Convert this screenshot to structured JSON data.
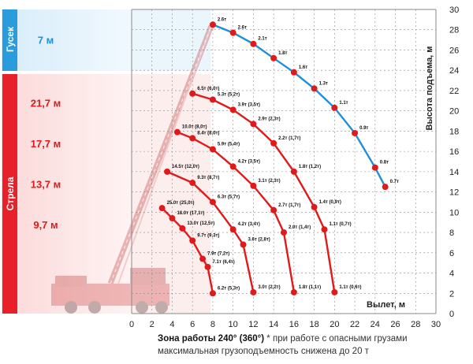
{
  "chart_data": {
    "type": "line",
    "title": "",
    "xlabel": "Вылет, м",
    "ylabel": "Высота подъема, м",
    "xlim": [
      0,
      30
    ],
    "ylim": [
      0,
      30
    ],
    "x_ticks": [
      0,
      2,
      4,
      6,
      8,
      10,
      12,
      14,
      16,
      18,
      20,
      22,
      24,
      26,
      28,
      30
    ],
    "y_ticks": [
      0,
      2,
      4,
      6,
      8,
      10,
      12,
      14,
      16,
      18,
      20,
      22,
      24,
      26,
      28,
      30
    ],
    "grid": true,
    "colors": {
      "jib": "#1e8fd8",
      "boom": "#e01a1a",
      "point": "#e01a1a",
      "jib_band": "#2a9bdc",
      "boom_band": "#e8202a"
    },
    "side_labels": {
      "jib": "Гусек",
      "boom": "Стрела"
    },
    "boom_lengths": [
      {
        "label": "7 м",
        "y": 27
      },
      {
        "label": "21,7 м",
        "y": 20.8
      },
      {
        "label": "17,7 м",
        "y": 16.8
      },
      {
        "label": "13,7 м",
        "y": 12.8
      },
      {
        "label": "9,7 м",
        "y": 8.8
      }
    ],
    "series": [
      {
        "name": "7 м",
        "kind": "jib",
        "points": [
          {
            "x": 8,
            "y": 28.5,
            "label": "2.6т"
          },
          {
            "x": 10,
            "y": 27.7,
            "label": "2.6т"
          },
          {
            "x": 12,
            "y": 26.6,
            "label": "2.1т"
          },
          {
            "x": 14,
            "y": 25.2,
            "label": "1.8т"
          },
          {
            "x": 16,
            "y": 23.8,
            "label": "1.6т"
          },
          {
            "x": 18,
            "y": 22.2,
            "label": "1.3т"
          },
          {
            "x": 20,
            "y": 20.3,
            "label": "1.1т"
          },
          {
            "x": 22,
            "y": 17.8,
            "label": "0.9т"
          },
          {
            "x": 24,
            "y": 14.4,
            "label": "0.8т"
          },
          {
            "x": 25,
            "y": 12.5,
            "label": "0.7т"
          }
        ]
      },
      {
        "name": "21,7 м",
        "kind": "boom",
        "points": [
          {
            "x": 6,
            "y": 21.7,
            "label": "6.5т (6,0т)"
          },
          {
            "x": 8,
            "y": 21.1,
            "label": "5.3т (5,2т)"
          },
          {
            "x": 10,
            "y": 20.1,
            "label": "3.9т (3,5т)"
          },
          {
            "x": 12,
            "y": 18.7,
            "label": "2.9т (2,3т)"
          },
          {
            "x": 14,
            "y": 16.8,
            "label": "2.2т (1,7т)"
          },
          {
            "x": 16,
            "y": 14.0,
            "label": "1.8т (1,2т)"
          },
          {
            "x": 18,
            "y": 10.5,
            "label": "1.4т (0,9т)"
          },
          {
            "x": 19,
            "y": 8.3,
            "label": "1.1т (0,7т)"
          },
          {
            "x": 20,
            "y": 2.1,
            "label": "1.1т (0,6т)"
          }
        ]
      },
      {
        "name": "17,7 м",
        "kind": "boom",
        "points": [
          {
            "x": 4.5,
            "y": 17.9,
            "label": "10.0т (8,0т)"
          },
          {
            "x": 6,
            "y": 17.3,
            "label": "8.4т (8,0т)"
          },
          {
            "x": 8,
            "y": 16.2,
            "label": "5.9т (5,4т)"
          },
          {
            "x": 10,
            "y": 14.5,
            "label": "4.2т (3,5т)"
          },
          {
            "x": 12,
            "y": 12.6,
            "label": "3.1т (2,3т)"
          },
          {
            "x": 14,
            "y": 10.2,
            "label": "2.7т (1,7т)"
          },
          {
            "x": 15,
            "y": 8.0,
            "label": "2.0т (1,4т)"
          },
          {
            "x": 16,
            "y": 2.1,
            "label": "1.8т (1,1т)"
          }
        ]
      },
      {
        "name": "13,7 м",
        "kind": "boom",
        "points": [
          {
            "x": 3.5,
            "y": 14.0,
            "label": "14.5т (12,0т)"
          },
          {
            "x": 6,
            "y": 12.9,
            "label": "9.3т (8,7т)"
          },
          {
            "x": 8,
            "y": 11.0,
            "label": "6.3т (5,7т)"
          },
          {
            "x": 10,
            "y": 8.3,
            "label": "4.2т (3,4т)"
          },
          {
            "x": 11,
            "y": 6.8,
            "label": "3.6т (2,8т)"
          },
          {
            "x": 12,
            "y": 2.1,
            "label": "3.0т (2,2т)"
          }
        ]
      },
      {
        "name": "9,7 м",
        "kind": "boom",
        "points": [
          {
            "x": 3,
            "y": 10.4,
            "label": "25.0т (25,0т)"
          },
          {
            "x": 4,
            "y": 9.4,
            "label": "18.0т (17,1т)"
          },
          {
            "x": 5,
            "y": 8.4,
            "label": "13.0т (12,5т)"
          },
          {
            "x": 6,
            "y": 7.2,
            "label": "9.7т (9,3т)"
          },
          {
            "x": 7,
            "y": 5.4,
            "label": "7.9т (7,2т)"
          },
          {
            "x": 7.5,
            "y": 4.6,
            "label": "7.1т (6,4т)"
          },
          {
            "x": 8,
            "y": 2.0,
            "label": "6.2т (5,3т)"
          }
        ]
      }
    ]
  },
  "footnote": {
    "bold": "Зона работы 240° (360°)",
    "text": " * при работе с опасными грузами максимальная грузоподъемность снижена до 20 т"
  }
}
